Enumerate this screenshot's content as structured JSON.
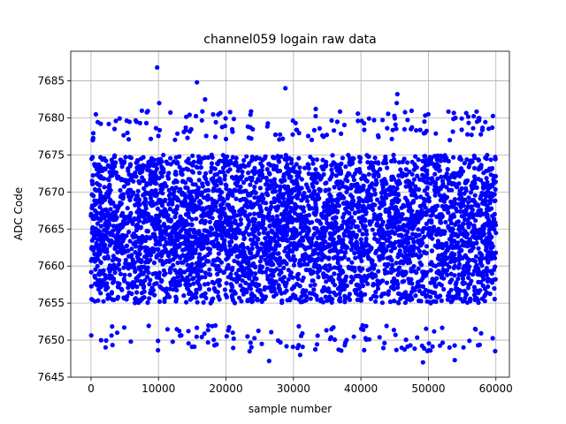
{
  "chart_data": {
    "type": "scatter",
    "title": "channel059 logain raw data",
    "xlabel": "sample number",
    "ylabel": "ADC Code",
    "xlim": [
      -3000,
      62000
    ],
    "ylim": [
      7645,
      7689
    ],
    "x_ticks": [
      0,
      10000,
      20000,
      30000,
      40000,
      50000,
      60000
    ],
    "y_ticks": [
      7645,
      7650,
      7655,
      7660,
      7665,
      7670,
      7675,
      7680,
      7685
    ],
    "grid": true,
    "legend": "none",
    "marker_color": "#0000ff",
    "series": [
      {
        "n_points": 60000,
        "x_range": [
          0,
          59999
        ],
        "dense_band": [
          7652,
          7677
        ],
        "core_band": [
          7655,
          7675
        ],
        "notable_points": [
          {
            "x": 9800,
            "y": 7686.8
          },
          {
            "x": 15700,
            "y": 7684.8
          },
          {
            "x": 28800,
            "y": 7684.0
          },
          {
            "x": 45400,
            "y": 7683.2
          },
          {
            "x": 45300,
            "y": 7682.0
          },
          {
            "x": 16900,
            "y": 7682.5
          },
          {
            "x": 10100,
            "y": 7682.0
          },
          {
            "x": 33300,
            "y": 7681.2
          },
          {
            "x": 54000,
            "y": 7680.0
          },
          {
            "x": 31000,
            "y": 7648.0
          },
          {
            "x": 26400,
            "y": 7647.2
          },
          {
            "x": 49200,
            "y": 7647.0
          },
          {
            "x": 53900,
            "y": 7647.3
          },
          {
            "x": 50300,
            "y": 7648.6
          },
          {
            "x": 18300,
            "y": 7649.3
          },
          {
            "x": 23500,
            "y": 7648.5
          },
          {
            "x": 1500,
            "y": 7650.0
          },
          {
            "x": 5900,
            "y": 7649.8
          },
          {
            "x": 43500,
            "y": 7649.6
          },
          {
            "x": 25300,
            "y": 7649.5
          }
        ]
      }
    ]
  }
}
